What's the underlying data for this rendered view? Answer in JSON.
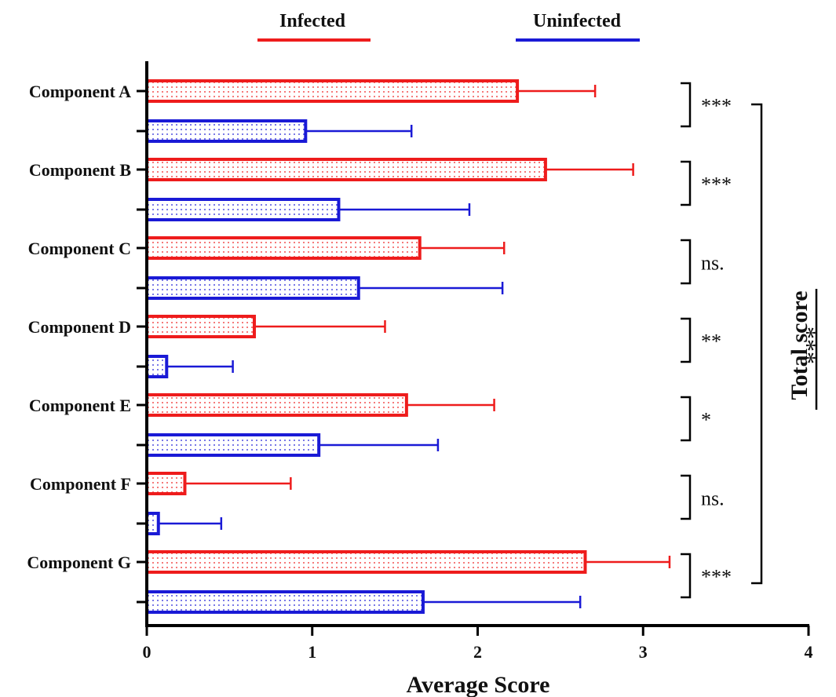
{
  "chart_data": {
    "type": "bar",
    "orientation": "horizontal",
    "xlabel": "Average Score",
    "xlim": [
      0,
      4
    ],
    "xticks": [
      "0",
      "1",
      "2",
      "3",
      "4"
    ],
    "categories": [
      "Component A",
      "Component B",
      "Component C",
      "Component D",
      "Component E",
      "Component F",
      "Component G"
    ],
    "series": [
      {
        "name": "Infected",
        "color": "#ee1c1c",
        "values": [
          2.24,
          2.41,
          1.65,
          0.65,
          1.57,
          0.23,
          2.65
        ],
        "errors": [
          0.47,
          0.53,
          0.51,
          0.79,
          0.53,
          0.64,
          0.51
        ]
      },
      {
        "name": "Uninfected",
        "color": "#1a1ad6",
        "values": [
          0.96,
          1.16,
          1.28,
          0.12,
          1.04,
          0.07,
          1.67
        ],
        "errors": [
          0.64,
          0.79,
          0.87,
          0.4,
          0.72,
          0.38,
          0.95
        ]
      }
    ],
    "significance": [
      "***",
      "***",
      "ns.",
      "**",
      "*",
      "ns.",
      "***"
    ],
    "total": {
      "label": "Total score",
      "significance": "***"
    },
    "legend_position": "top",
    "grid": false
  }
}
